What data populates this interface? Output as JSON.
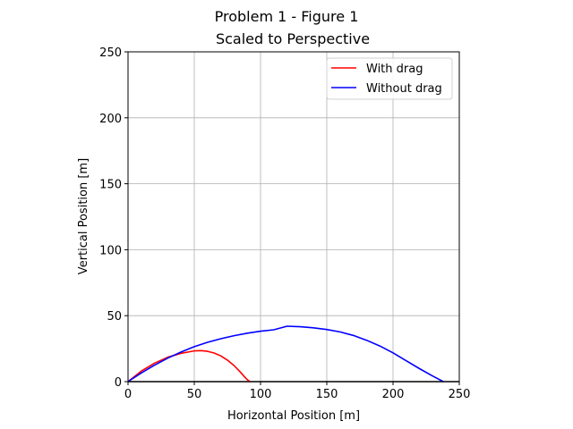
{
  "chart_data": {
    "type": "line",
    "title": "Problem 1 - Figure 1",
    "subtitle": "Scaled to Perspective",
    "xlabel": "Horizontal Position [m]",
    "ylabel": "Vertical Position [m]",
    "xlim": [
      0,
      250
    ],
    "ylim": [
      0,
      250
    ],
    "xticks": [
      "0",
      "50",
      "100",
      "150",
      "200",
      "250"
    ],
    "yticks": [
      "0",
      "50",
      "100",
      "150",
      "200",
      "250"
    ],
    "grid": true,
    "legend_position": "top-right",
    "ground_color": "#000000",
    "series": [
      {
        "name": "With drag",
        "color": "#ff0000",
        "x": [
          0,
          10,
          20,
          30,
          40,
          50,
          55,
          60,
          65,
          70,
          75,
          80,
          85,
          88,
          90,
          92
        ],
        "y": [
          0,
          8,
          14,
          18.5,
          21.5,
          23.3,
          23.5,
          23.0,
          21.7,
          19.5,
          16.3,
          12.2,
          7.0,
          3.6,
          1.5,
          0
        ]
      },
      {
        "name": "Without drag",
        "color": "#0000ff",
        "x": [
          0,
          10,
          20,
          30,
          40,
          50,
          60,
          70,
          80,
          90,
          100,
          110,
          120,
          130,
          140,
          150,
          160,
          170,
          180,
          190,
          200,
          210,
          220,
          230,
          238
        ],
        "y": [
          0,
          6.6,
          12.5,
          17.8,
          22.4,
          26.5,
          29.8,
          32.5,
          34.8,
          36.7,
          38.2,
          39.3,
          42.0,
          41.6,
          40.8,
          39.5,
          37.7,
          35.0,
          31.4,
          27.0,
          21.8,
          15.8,
          9.8,
          4.2,
          0
        ]
      }
    ]
  }
}
